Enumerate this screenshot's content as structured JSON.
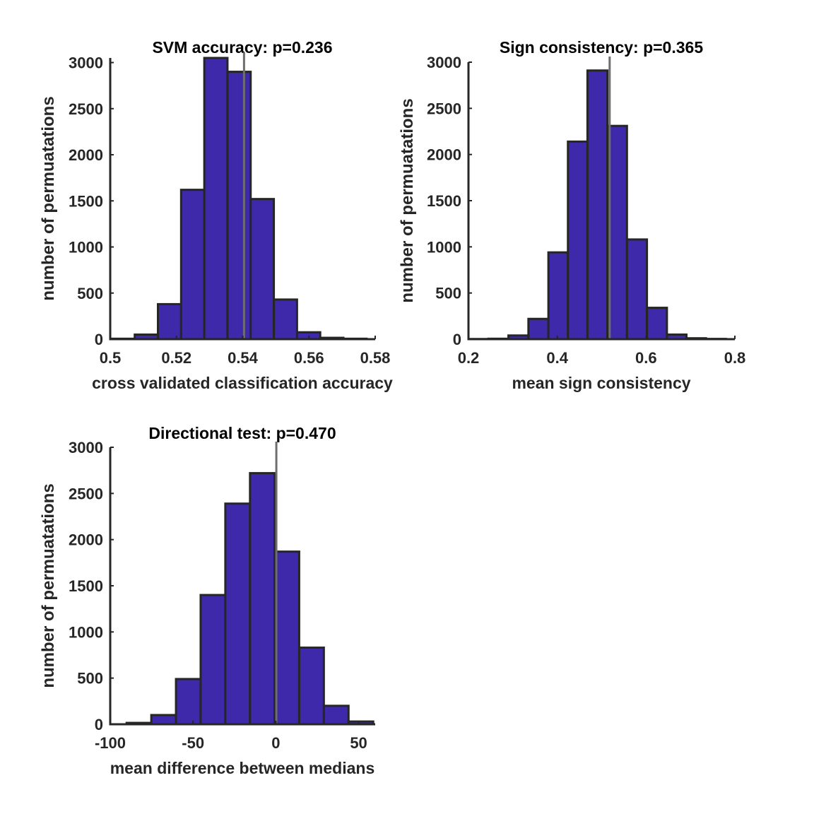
{
  "chart_data": [
    {
      "type": "bar",
      "title": "SVM accuracy: p=0.236",
      "xlabel": "cross validated classification accuracy",
      "ylabel": "number of permuatations",
      "xlim": [
        0.5,
        0.58
      ],
      "ylim": [
        0,
        3050
      ],
      "xticks": [
        0.5,
        0.52,
        0.54,
        0.56,
        0.58
      ],
      "xtick_labels": [
        "0.5",
        "0.52",
        "0.54",
        "0.56",
        "0.58"
      ],
      "yticks": [
        0,
        500,
        1000,
        1500,
        2000,
        2500,
        3000
      ],
      "ytick_labels": [
        "0",
        "500",
        "1000",
        "1500",
        "2000",
        "2500",
        "3000"
      ],
      "bin_edges": [
        0.5003,
        0.5074,
        0.5144,
        0.5214,
        0.5284,
        0.5354,
        0.5424,
        0.5494,
        0.5564,
        0.5634,
        0.5704,
        0.5774
      ],
      "values": [
        5,
        50,
        380,
        1620,
        3050,
        2900,
        1520,
        430,
        75,
        15,
        5
      ],
      "observed_value": 0.5404,
      "colors": {
        "bar": "#3d29a9",
        "edge": "#262626",
        "observed_line": "#6e6e6e"
      },
      "grid": false
    },
    {
      "type": "bar",
      "title": "Sign consistency: p=0.365",
      "xlabel": "mean sign consistency",
      "ylabel": "number of permuatations",
      "xlim": [
        0.2,
        0.8
      ],
      "ylim": [
        0,
        3000
      ],
      "xticks": [
        0.2,
        0.4,
        0.6,
        0.8
      ],
      "xtick_labels": [
        "0.2",
        "0.4",
        "0.6",
        "0.8"
      ],
      "yticks": [
        0,
        500,
        1000,
        1500,
        2000,
        2500,
        3000
      ],
      "ytick_labels": [
        "0",
        "500",
        "1000",
        "1500",
        "2000",
        "2500",
        "3000"
      ],
      "bin_edges": [
        0.2,
        0.245,
        0.29,
        0.335,
        0.38,
        0.424,
        0.468,
        0.513,
        0.557,
        0.602,
        0.647,
        0.691,
        0.735,
        0.78
      ],
      "values": [
        2,
        5,
        40,
        220,
        940,
        2140,
        2910,
        2310,
        1080,
        340,
        50,
        10,
        3
      ],
      "observed_value": 0.518,
      "colors": {
        "bar": "#3d29a9",
        "edge": "#262626",
        "observed_line": "#6e6e6e"
      },
      "grid": false
    },
    {
      "type": "bar",
      "title": "Directional test: p=0.470",
      "xlabel": "mean difference between medians",
      "ylabel": "number of permuatations",
      "xlim": [
        -100,
        60
      ],
      "ylim": [
        0,
        3000
      ],
      "xticks": [
        -100,
        -50,
        0,
        50
      ],
      "xtick_labels": [
        "-100",
        "-50",
        "0",
        "50"
      ],
      "yticks": [
        0,
        500,
        1000,
        1500,
        2000,
        2500,
        3000
      ],
      "ytick_labels": [
        "0",
        "500",
        "1000",
        "1500",
        "2000",
        "2500",
        "3000"
      ],
      "bin_edges": [
        -90.1,
        -75.2,
        -60.3,
        -45.4,
        -30.5,
        -15.6,
        -0.8,
        14.1,
        29.0,
        43.9,
        58.8
      ],
      "values": [
        15,
        100,
        490,
        1400,
        2390,
        2720,
        1870,
        830,
        200,
        30
      ],
      "observed_value": 0.3,
      "colors": {
        "bar": "#3d29a9",
        "edge": "#262626",
        "observed_line": "#6e6e6e"
      },
      "grid": false
    }
  ]
}
